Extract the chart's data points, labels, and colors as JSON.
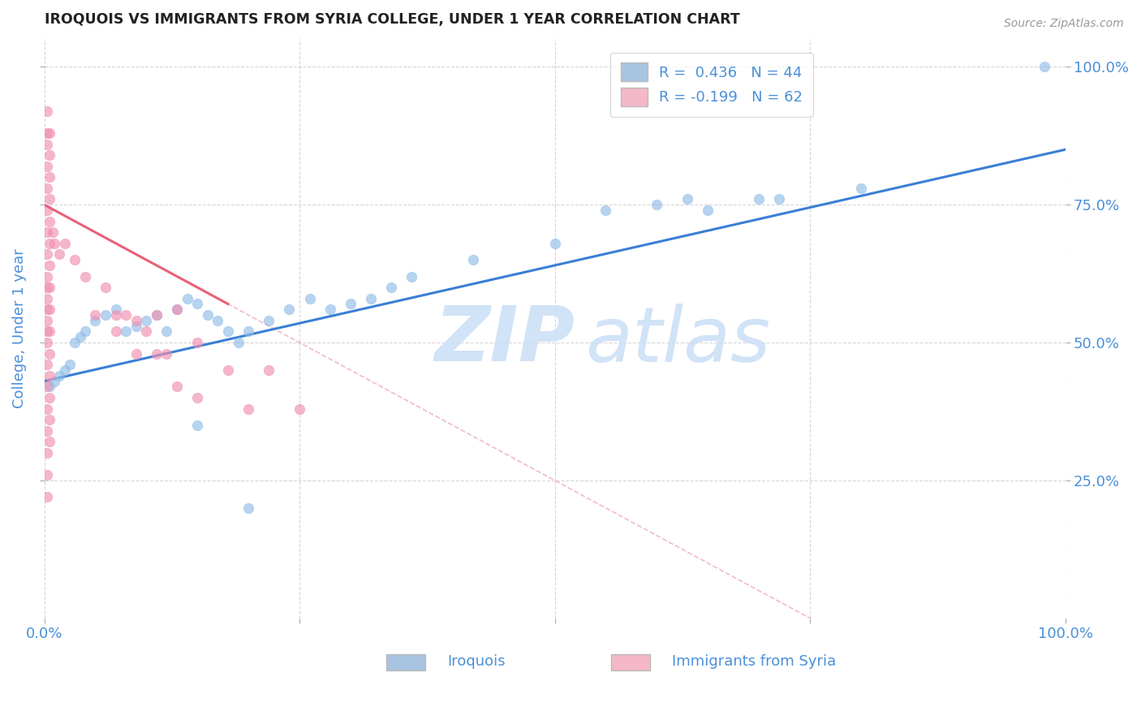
{
  "title": "IROQUOIS VS IMMIGRANTS FROM SYRIA COLLEGE, UNDER 1 YEAR CORRELATION CHART",
  "source": "Source: ZipAtlas.com",
  "ylabel": "College, Under 1 year",
  "ylabel_right_labels": [
    "100.0%",
    "75.0%",
    "50.0%",
    "25.0%"
  ],
  "ylabel_right_positions": [
    1.0,
    0.75,
    0.5,
    0.25
  ],
  "watermark_zip": "ZIP",
  "watermark_atlas": "atlas",
  "blue_color": "#a8c4e0",
  "pink_color": "#f4b8c8",
  "blue_line_color": "#3a7fd5",
  "pink_line_color": "#e8607a",
  "blue_dot_color": "#90bce8",
  "pink_dot_color": "#f090b0",
  "title_color": "#222222",
  "axis_label_color": "#4a90d9",
  "grid_color": "#cccccc",
  "background_color": "#ffffff",
  "iroquois_x": [
    0.005,
    0.01,
    0.015,
    0.02,
    0.025,
    0.03,
    0.035,
    0.04,
    0.05,
    0.06,
    0.07,
    0.08,
    0.09,
    0.1,
    0.11,
    0.12,
    0.13,
    0.14,
    0.15,
    0.16,
    0.17,
    0.18,
    0.19,
    0.2,
    0.22,
    0.24,
    0.26,
    0.28,
    0.3,
    0.32,
    0.34,
    0.36,
    0.42,
    0.5,
    0.55,
    0.6,
    0.63,
    0.65,
    0.7,
    0.72,
    0.8,
    0.98,
    0.15,
    0.2
  ],
  "iroquois_y": [
    0.42,
    0.43,
    0.44,
    0.45,
    0.46,
    0.5,
    0.51,
    0.52,
    0.54,
    0.55,
    0.56,
    0.52,
    0.53,
    0.54,
    0.55,
    0.52,
    0.56,
    0.58,
    0.57,
    0.55,
    0.54,
    0.52,
    0.5,
    0.52,
    0.54,
    0.56,
    0.58,
    0.56,
    0.57,
    0.58,
    0.6,
    0.62,
    0.65,
    0.68,
    0.74,
    0.75,
    0.76,
    0.74,
    0.76,
    0.76,
    0.78,
    1.0,
    0.35,
    0.2
  ],
  "syria_x": [
    0.003,
    0.003,
    0.003,
    0.003,
    0.003,
    0.003,
    0.003,
    0.003,
    0.003,
    0.003,
    0.003,
    0.003,
    0.003,
    0.003,
    0.003,
    0.003,
    0.003,
    0.003,
    0.003,
    0.003,
    0.003,
    0.003,
    0.005,
    0.005,
    0.005,
    0.005,
    0.005,
    0.005,
    0.005,
    0.005,
    0.005,
    0.005,
    0.005,
    0.005,
    0.005,
    0.005,
    0.005,
    0.008,
    0.01,
    0.015,
    0.02,
    0.03,
    0.04,
    0.05,
    0.06,
    0.07,
    0.08,
    0.1,
    0.12,
    0.15,
    0.18,
    0.22,
    0.15,
    0.2,
    0.25,
    0.09,
    0.11,
    0.13,
    0.07,
    0.09,
    0.11,
    0.13
  ],
  "syria_y": [
    0.92,
    0.88,
    0.86,
    0.82,
    0.78,
    0.74,
    0.7,
    0.66,
    0.62,
    0.58,
    0.54,
    0.5,
    0.46,
    0.42,
    0.38,
    0.34,
    0.3,
    0.26,
    0.22,
    0.6,
    0.56,
    0.52,
    0.88,
    0.84,
    0.8,
    0.76,
    0.72,
    0.68,
    0.64,
    0.6,
    0.56,
    0.52,
    0.48,
    0.44,
    0.4,
    0.36,
    0.32,
    0.7,
    0.68,
    0.66,
    0.68,
    0.65,
    0.62,
    0.55,
    0.6,
    0.55,
    0.55,
    0.52,
    0.48,
    0.5,
    0.45,
    0.45,
    0.4,
    0.38,
    0.38,
    0.54,
    0.55,
    0.56,
    0.52,
    0.48,
    0.48,
    0.42
  ],
  "blue_trendline_x": [
    0.0,
    1.0
  ],
  "blue_trendline_y": [
    0.43,
    0.85
  ],
  "pink_trendline_x": [
    0.0,
    0.18
  ],
  "pink_trendline_y": [
    0.75,
    0.57
  ],
  "dashed_line_x": [
    0.0,
    1.0
  ],
  "dashed_line_y": [
    0.75,
    -0.25
  ],
  "xlim": [
    0.0,
    1.0
  ],
  "ylim": [
    0.0,
    1.05
  ]
}
